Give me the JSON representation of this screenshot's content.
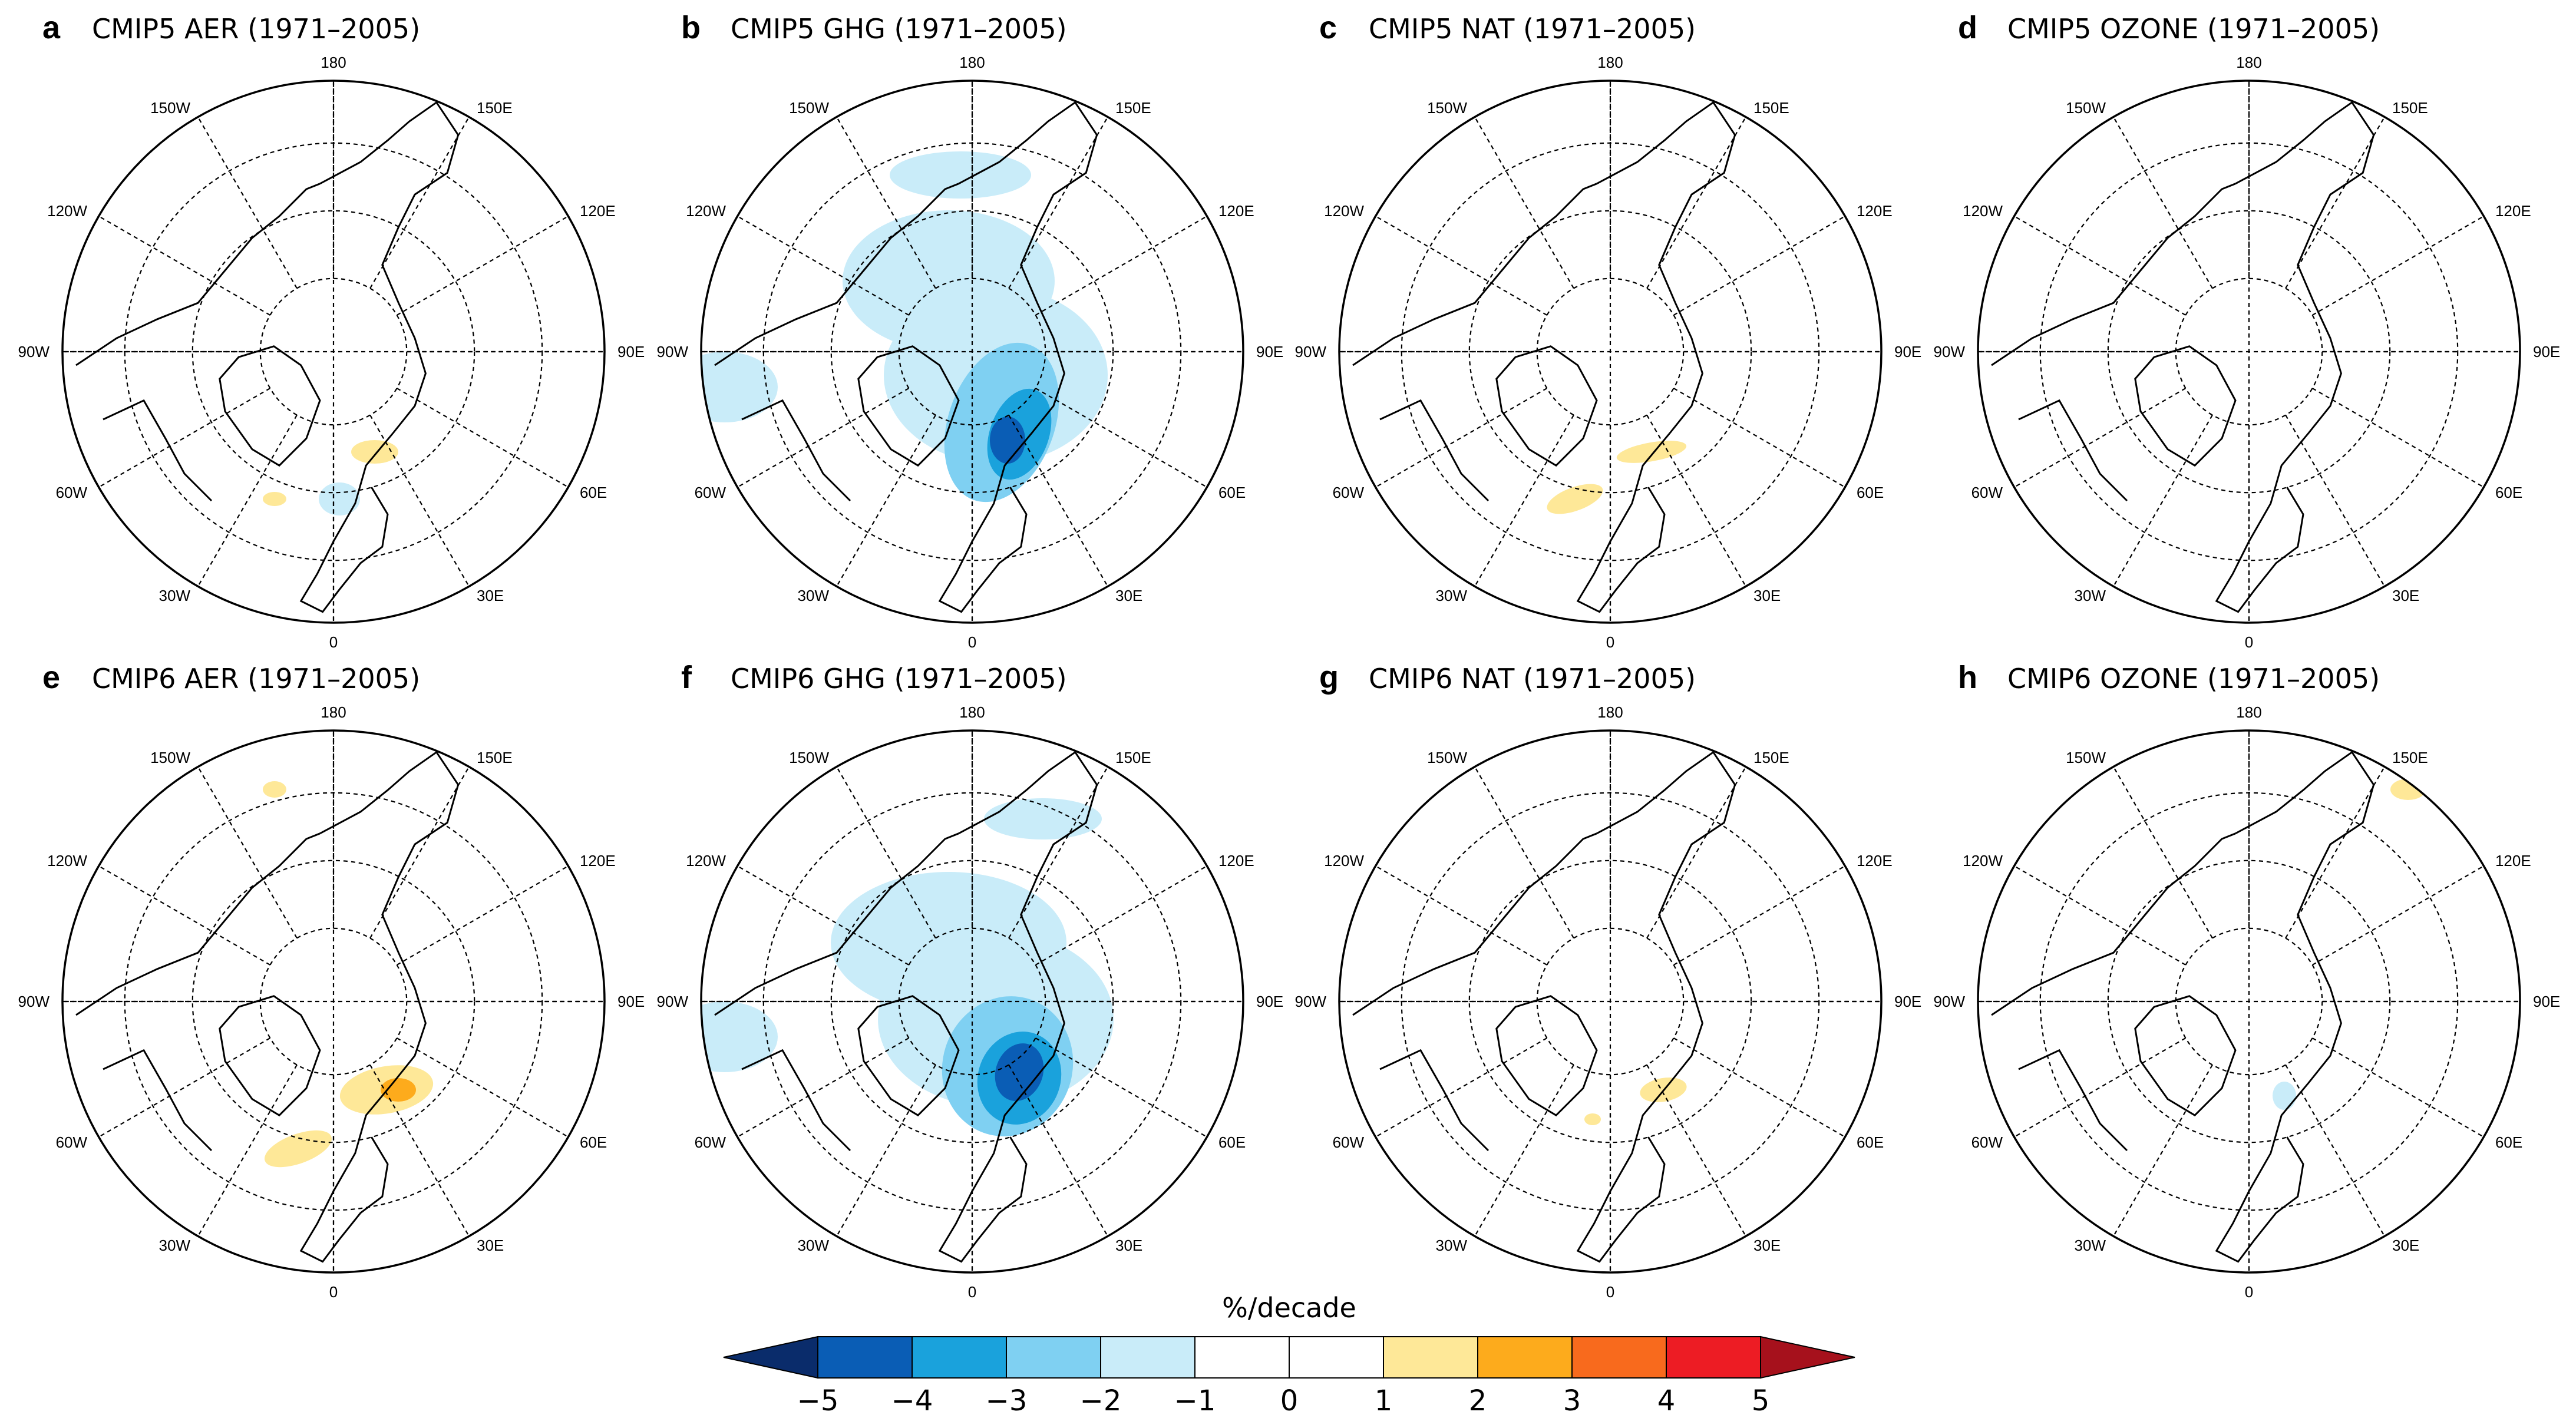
{
  "figure": {
    "panels": [
      {
        "letter": "a",
        "title": "CMIP5 AER (1971–2005)",
        "model": "CMIP5",
        "forcing": "AER"
      },
      {
        "letter": "b",
        "title": "CMIP5 GHG (1971–2005)",
        "model": "CMIP5",
        "forcing": "GHG"
      },
      {
        "letter": "c",
        "title": "CMIP5 NAT (1971–2005)",
        "model": "CMIP5",
        "forcing": "NAT"
      },
      {
        "letter": "d",
        "title": "CMIP5 OZONE (1971–2005)",
        "model": "CMIP5",
        "forcing": "OZONE"
      },
      {
        "letter": "e",
        "title": "CMIP6 AER (1971–2005)",
        "model": "CMIP6",
        "forcing": "AER"
      },
      {
        "letter": "f",
        "title": "CMIP6 GHG (1971–2005)",
        "model": "CMIP6",
        "forcing": "GHG"
      },
      {
        "letter": "g",
        "title": "CMIP6 NAT (1971–2005)",
        "model": "CMIP6",
        "forcing": "NAT"
      },
      {
        "letter": "h",
        "title": "CMIP6 OZONE (1971–2005)",
        "model": "CMIP6",
        "forcing": "OZONE"
      }
    ],
    "longitude_labels": [
      "180",
      "150E",
      "120E",
      "90E",
      "60E",
      "30E",
      "0",
      "30W",
      "60W",
      "90W",
      "120W",
      "150W"
    ],
    "colorbar": {
      "title": "%/decade",
      "ticks": [
        "−5",
        "−4",
        "−3",
        "−2",
        "−1",
        "0",
        "1",
        "2",
        "3",
        "4",
        "5"
      ],
      "colors": [
        "#0a2c6b",
        "#0a5db5",
        "#1aa2dc",
        "#7fd0f2",
        "#c9ecf9",
        "#ffffff",
        "#ffffff",
        "#fee898",
        "#fdab1c",
        "#f86a1d",
        "#ed1c24",
        "#a6111c"
      ]
    }
  }
}
